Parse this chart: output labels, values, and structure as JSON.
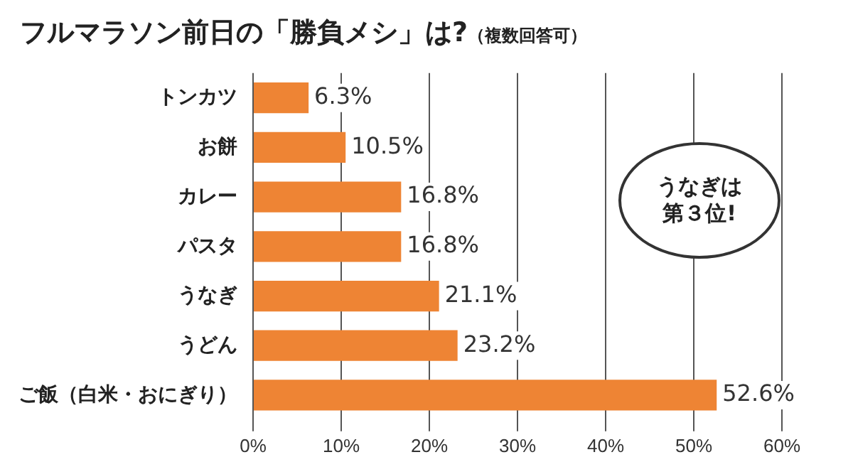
{
  "chart_data": {
    "type": "bar",
    "orientation": "horizontal",
    "title": "フルマラソン前日の「勝負メシ」は?",
    "subtitle": "（複数回答可）",
    "categories": [
      "トンカツ",
      "お餅",
      "カレー",
      "パスタ",
      "うなぎ",
      "うどん",
      "ご飯（白米・おにぎり）"
    ],
    "values": [
      6.3,
      10.5,
      16.8,
      16.8,
      21.1,
      23.2,
      52.6
    ],
    "color": "#ee8434",
    "value_labels": [
      "6.3%",
      "10.5%",
      "16.8%",
      "16.8%",
      "21.1%",
      "23.2%",
      "52.6%"
    ],
    "xlim": [
      0,
      60
    ],
    "xticks": [
      {
        "value": 0,
        "label": "0%"
      },
      {
        "value": 10,
        "label": "10%"
      },
      {
        "value": 20,
        "label": "20%"
      },
      {
        "value": 30,
        "label": "30%"
      },
      {
        "value": 40,
        "label": "40%"
      },
      {
        "value": 50,
        "label": "50%"
      },
      {
        "value": 60,
        "label": "60%"
      }
    ],
    "grid": "x",
    "annotations": [
      "うなぎは",
      "第３位!"
    ]
  }
}
